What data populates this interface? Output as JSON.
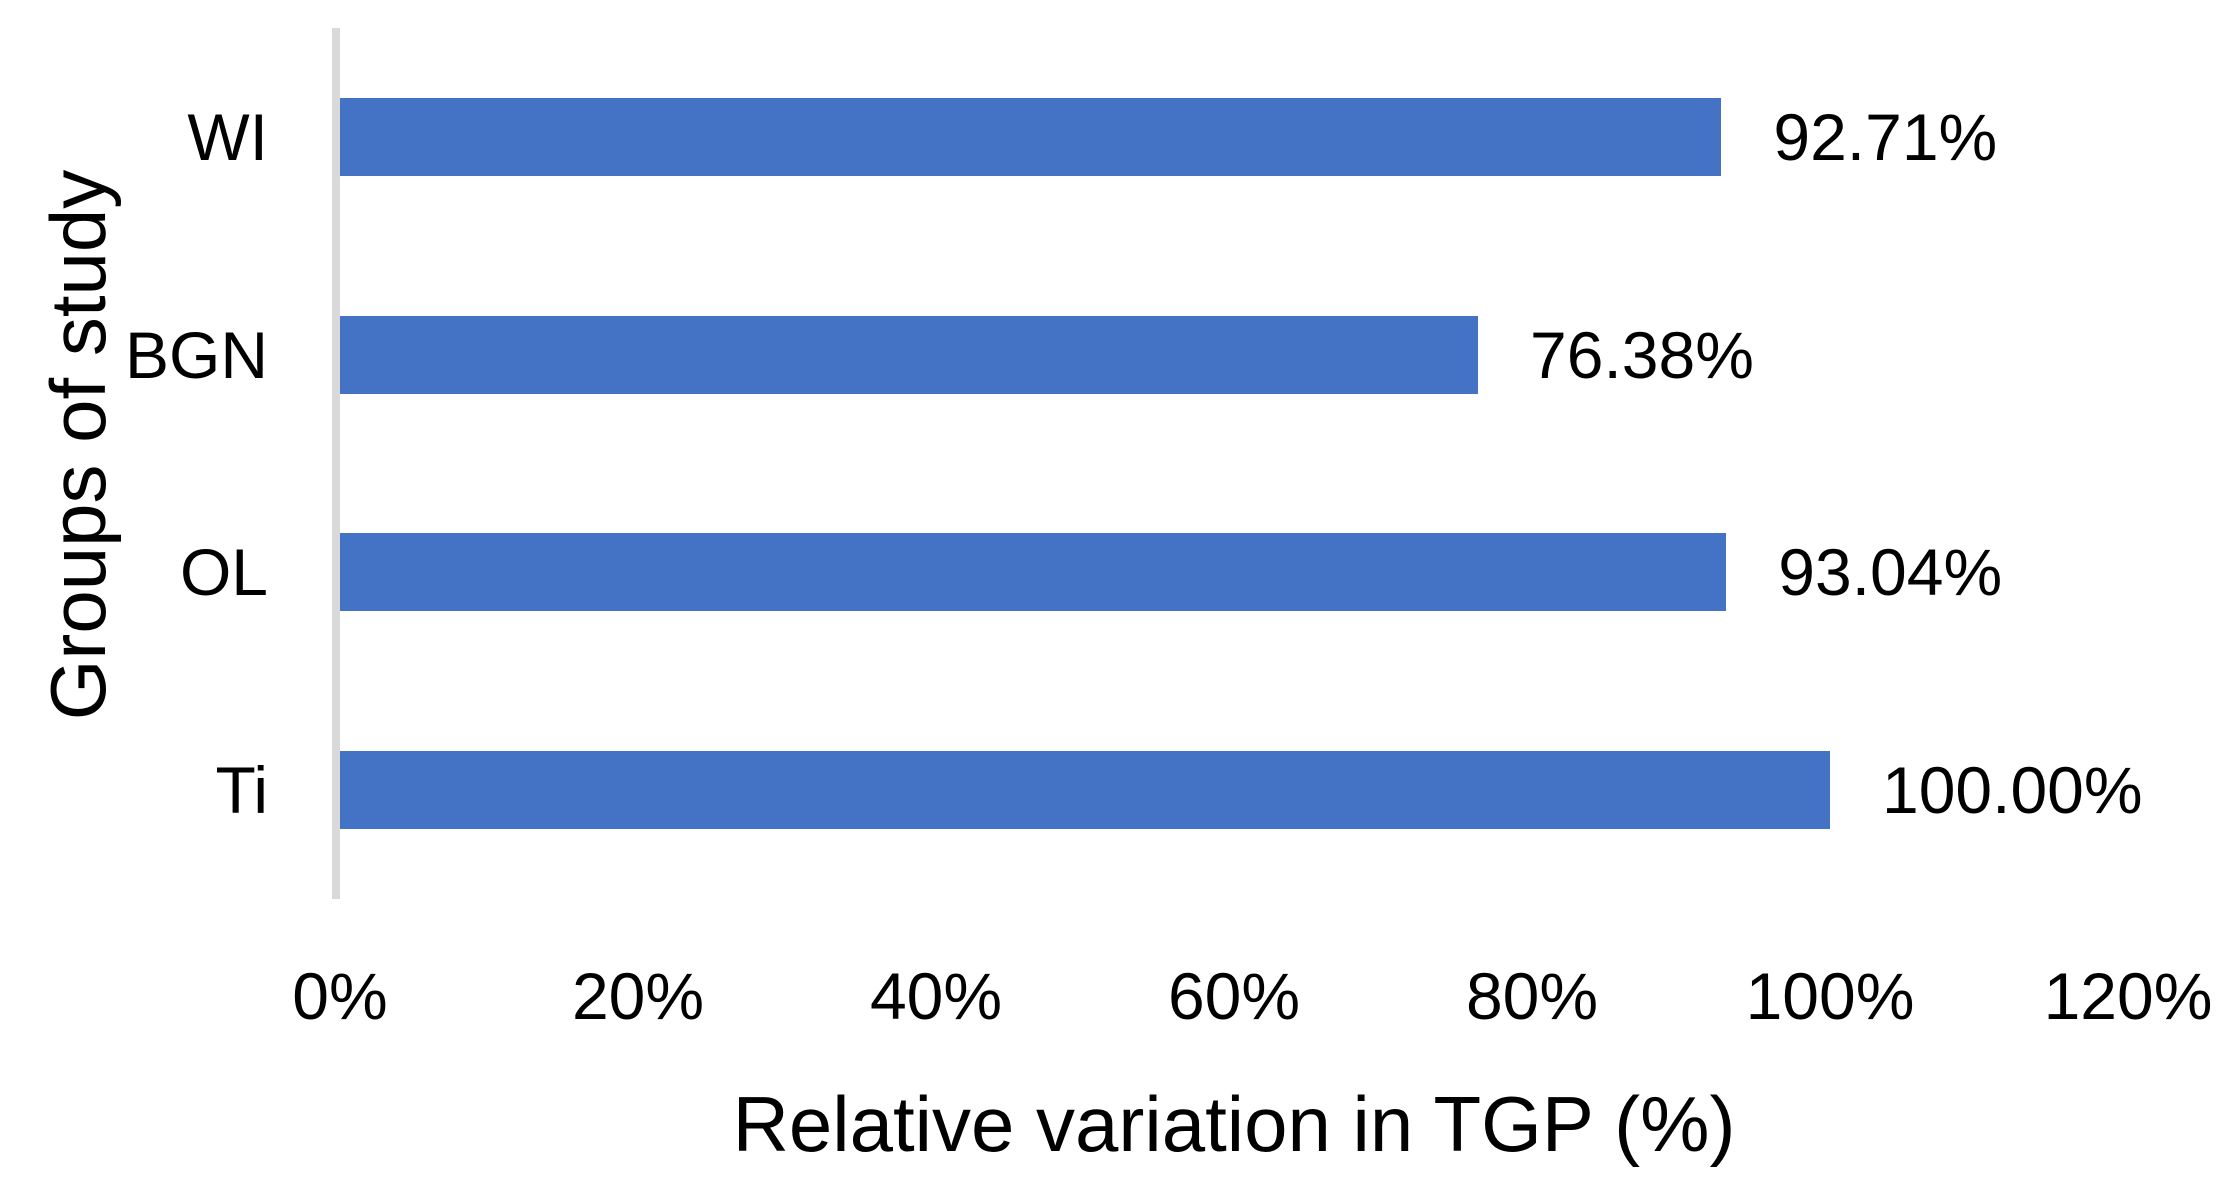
{
  "chart_data": {
    "type": "bar",
    "orientation": "horizontal",
    "title": "",
    "xlabel": "Relative variation in TGP (%)",
    "ylabel": "Groups of study",
    "categories": [
      "WI",
      "BGN",
      "OL",
      "Ti"
    ],
    "values": [
      92.71,
      76.38,
      93.04,
      100.0
    ],
    "data_labels": [
      "92.71%",
      "76.38%",
      "93.04%",
      "100.00%"
    ],
    "xlim": [
      0,
      120
    ],
    "x_tick_values": [
      0,
      20,
      40,
      60,
      80,
      100,
      120
    ],
    "x_tick_labels": [
      "0%",
      "20%",
      "40%",
      "60%",
      "80%",
      "100%",
      "120%"
    ],
    "grid": false,
    "legend": false,
    "bar_color": "#4472C4",
    "axis_line_color": "#D9D9D9",
    "text_color": "#000000"
  }
}
